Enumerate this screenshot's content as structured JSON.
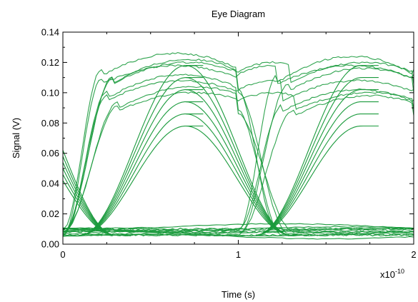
{
  "chart_data": {
    "type": "line",
    "title": "Eye Diagram",
    "xlabel": "Time (s)",
    "ylabel": "Signal (V)",
    "x_multiplier": "x10",
    "x_multiplier_exponent": "-10",
    "xlim": [
      0,
      2
    ],
    "ylim": [
      0,
      0.14
    ],
    "x_ticks": [
      0,
      1,
      2
    ],
    "x_tick_labels": [
      "0",
      "1",
      "2"
    ],
    "y_ticks": [
      0.0,
      0.02,
      0.04,
      0.06,
      0.08,
      0.1,
      0.12,
      0.14
    ],
    "y_tick_labels": [
      "0.00",
      "0.02",
      "0.04",
      "0.06",
      "0.08",
      "0.10",
      "0.12",
      "0.14"
    ],
    "grid": false,
    "legend": "none",
    "line_color": "#1a9a3c",
    "traces": [
      {
        "pattern": "HHH",
        "x0": 0.088,
        "x1": 0.118
      },
      {
        "pattern": "HHH",
        "x0": 0.076,
        "x1": 0.108
      },
      {
        "pattern": "HHL",
        "x0": 0.086,
        "x1": 0.12
      },
      {
        "pattern": "HHL",
        "x0": 0.072,
        "x1": 0.1
      },
      {
        "pattern": "HLH",
        "x0": 0.09,
        "x1": 0.126
      },
      {
        "pattern": "HLH",
        "x0": 0.074,
        "x1": 0.112
      },
      {
        "pattern": "HLL",
        "x0": 0.084,
        "x1": 0.122
      },
      {
        "pattern": "HLL",
        "x0": 0.07,
        "x1": 0.104
      },
      {
        "pattern": "LHH",
        "x0": 0.082,
        "x1": 0.124
      },
      {
        "pattern": "LHH",
        "x0": 0.068,
        "x1": 0.102
      },
      {
        "pattern": "LHL",
        "x0": 0.08,
        "x1": 0.116
      },
      {
        "pattern": "LHL",
        "x0": 0.066,
        "x1": 0.098
      },
      {
        "pattern": "LLH",
        "x0": 0.088,
        "x1": 0.114
      },
      {
        "pattern": "LLH",
        "x0": 0.074,
        "x1": 0.106
      },
      {
        "pattern": "LLL",
        "x0": 0.086,
        "x1": 0.11
      },
      {
        "pattern": "LLL",
        "x0": 0.072,
        "x1": 0.096
      }
    ],
    "low_levels": [
      0.005,
      0.007,
      0.009,
      0.01,
      0.012
    ]
  }
}
